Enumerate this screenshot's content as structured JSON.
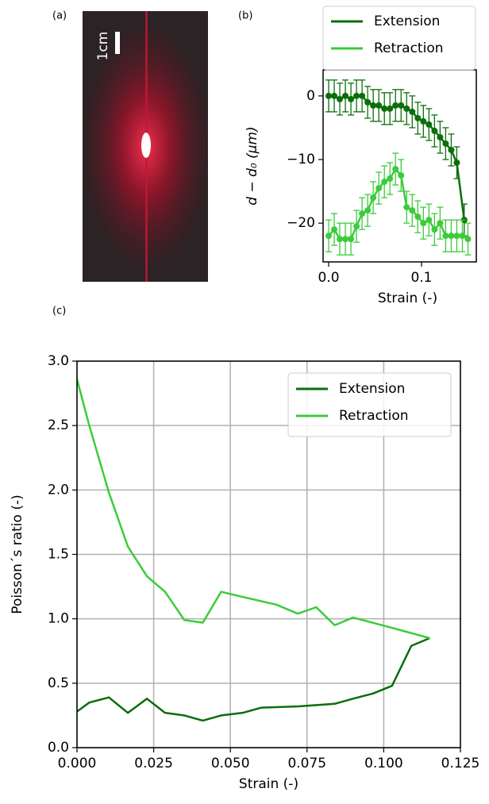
{
  "panel_labels": [
    "(a)",
    "(b)",
    "(c)"
  ],
  "image": {
    "scale_label": "1cm"
  },
  "chart_data": [
    {
      "type": "line",
      "xlabel": "Strain (-)",
      "ylabel": "d − d₀ (μm)",
      "xlim": [
        -0.006,
        0.159
      ],
      "ylim": [
        -26.1,
        4.1
      ],
      "xticks": [
        {
          "value": 0,
          "label": "0.0"
        },
        0.1
      ],
      "yticks": [
        {
          "value": -20,
          "label": "−20"
        },
        {
          "value": -10,
          "label": "−10"
        },
        0
      ],
      "grid": false,
      "legend": "above",
      "markers": true,
      "series": [
        {
          "name": "Extension",
          "color": "#0b6e0b",
          "x": [
            0,
            0.006,
            0.012,
            0.018,
            0.024,
            0.03,
            0.036,
            0.042,
            0.048,
            0.054,
            0.06,
            0.066,
            0.072,
            0.078,
            0.084,
            0.09,
            0.096,
            0.102,
            0.108,
            0.114,
            0.12,
            0.126,
            0.132,
            0.138,
            0.146
          ],
          "values": [
            0,
            0,
            -0.5,
            0,
            -0.5,
            0,
            0,
            -1,
            -1.5,
            -1.5,
            -2,
            -2,
            -1.5,
            -1.5,
            -2,
            -2.5,
            -3.5,
            -4,
            -4.5,
            -5.5,
            -6.5,
            -7.5,
            -8.5,
            -10.5,
            -19.5
          ],
          "errors": [
            2.5,
            2.5,
            2.5,
            2.5,
            2.5,
            2.5,
            2.5,
            2.5,
            2.5,
            2.5,
            2.5,
            2.5,
            2.5,
            2.5,
            2.5,
            2.5,
            2.5,
            2.5,
            2.5,
            2.5,
            2.5,
            2.5,
            2.5,
            2.5,
            2.5
          ]
        },
        {
          "name": "Retraction",
          "color": "#3bcc3b",
          "x": [
            0,
            0.006,
            0.012,
            0.018,
            0.024,
            0.03,
            0.036,
            0.042,
            0.048,
            0.054,
            0.06,
            0.066,
            0.072,
            0.078,
            0.084,
            0.09,
            0.096,
            0.102,
            0.108,
            0.114,
            0.12,
            0.126,
            0.132,
            0.138,
            0.144,
            0.15
          ],
          "values": [
            -22,
            -21,
            -22.5,
            -22.5,
            -22.5,
            -20.5,
            -18.5,
            -18,
            -16,
            -14.5,
            -13.5,
            -13,
            -11.5,
            -12.5,
            -17.5,
            -18,
            -19,
            -20,
            -19.5,
            -21,
            -20,
            -22,
            -22,
            -22,
            -22,
            -22.5
          ],
          "errors": [
            2.5,
            2.5,
            2.5,
            2.5,
            2.5,
            2.5,
            2.5,
            2.5,
            2.5,
            2.5,
            2.5,
            2.5,
            2.5,
            2.5,
            2.5,
            2.5,
            2.5,
            2.5,
            2.5,
            2.5,
            2.5,
            2.5,
            2.5,
            2.5,
            2.5,
            2.5
          ]
        }
      ]
    },
    {
      "type": "line",
      "xlabel": "Strain (-)",
      "ylabel": "Poisson´s ratio (-)",
      "xlim": [
        0,
        0.125
      ],
      "ylim": [
        0,
        3
      ],
      "xticks": [
        {
          "value": 0,
          "label": "0.000"
        },
        0.025,
        {
          "value": 0.05,
          "label": "0.050"
        },
        0.075,
        {
          "value": 0.1,
          "label": "0.100"
        },
        0.125
      ],
      "yticks": [
        {
          "value": 0,
          "label": "0.0"
        },
        0.5,
        {
          "value": 1,
          "label": "1.0"
        },
        1.5,
        {
          "value": 2,
          "label": "2.0"
        },
        2.5,
        {
          "value": 3,
          "label": "3.0"
        }
      ],
      "grid": true,
      "legend": "upper right",
      "markers": false,
      "series": [
        {
          "name": "Extension",
          "color": "#0b6e0b",
          "x": [
            0,
            0.004,
            0.0104,
            0.0166,
            0.0228,
            0.0287,
            0.035,
            0.041,
            0.047,
            0.054,
            0.06,
            0.072,
            0.084,
            0.09,
            0.0965,
            0.1027,
            0.109,
            0.115
          ],
          "values": [
            0.28,
            0.35,
            0.39,
            0.27,
            0.38,
            0.27,
            0.25,
            0.21,
            0.25,
            0.27,
            0.31,
            0.32,
            0.34,
            0.38,
            0.42,
            0.48,
            0.79,
            0.85
          ]
        },
        {
          "name": "Retraction",
          "color": "#3bcc3b",
          "x": [
            0,
            0.004,
            0.0104,
            0.0166,
            0.0228,
            0.0287,
            0.035,
            0.041,
            0.047,
            0.054,
            0.065,
            0.072,
            0.078,
            0.084,
            0.09,
            0.1027,
            0.115
          ],
          "values": [
            2.86,
            2.5,
            1.98,
            1.56,
            1.33,
            1.21,
            0.99,
            0.97,
            1.21,
            1.17,
            1.11,
            1.04,
            1.09,
            0.95,
            1.01,
            0.93,
            0.85
          ]
        }
      ]
    }
  ]
}
